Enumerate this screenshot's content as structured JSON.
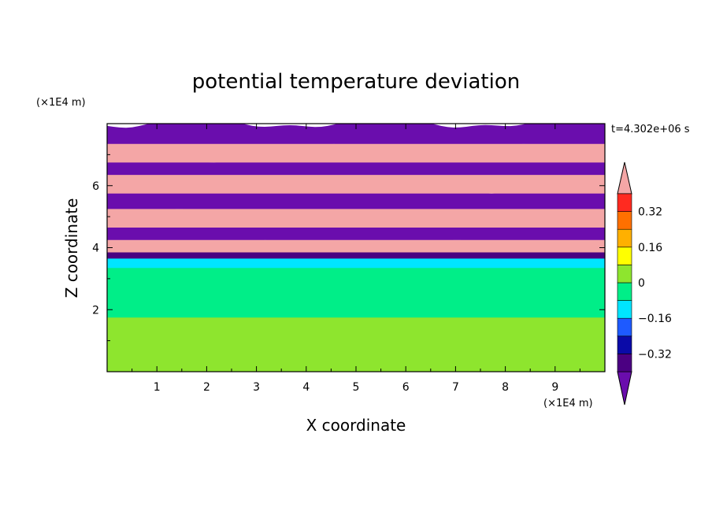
{
  "chart_data": {
    "type": "heatmap",
    "title": "potential temperature deviation",
    "xlabel": "X coordinate",
    "ylabel": "Z coordinate",
    "x_unit": "(×1E4 m)",
    "y_unit": "(×1E4 m)",
    "time_label": "t=4.302e+06 s",
    "xlim": [
      0,
      10
    ],
    "ylim": [
      0,
      8
    ],
    "x_ticks": [
      "1",
      "2",
      "3",
      "4",
      "5",
      "6",
      "7",
      "8",
      "9"
    ],
    "y_ticks": [
      "2",
      "4",
      "6"
    ],
    "colorbar": {
      "levels": [
        -0.48,
        -0.4,
        -0.32,
        -0.24,
        -0.16,
        -0.08,
        0,
        0.08,
        0.16,
        0.24,
        0.32,
        0.4,
        0.48
      ],
      "tick_labels": [
        "0.32",
        "0.16",
        "0",
        "−0.16",
        "−0.32"
      ],
      "tick_values": [
        0.32,
        0.16,
        0,
        -0.16,
        -0.32
      ],
      "colors": [
        "#6a0dad",
        "#4b0082",
        "#0a0aa8",
        "#1e5aff",
        "#00e5ff",
        "#00ee88",
        "#8ee52e",
        "#ffff00",
        "#ffb000",
        "#ff7000",
        "#ff2a20",
        "#f4a6a6"
      ],
      "extend": "both"
    },
    "bands": [
      {
        "z0": 0.0,
        "z1": 1.9,
        "color": "#8ee52e"
      },
      {
        "z0": 1.9,
        "z1": 2.2,
        "color": "#00ee88"
      },
      {
        "z0": 2.2,
        "z1": 3.5,
        "color": "#00ee88"
      },
      {
        "z0": 3.5,
        "z1": 3.8,
        "color": "#00e5ff"
      },
      {
        "z0": 3.8,
        "z1": 4.0,
        "color": "#4b0082"
      },
      {
        "z0": 4.0,
        "z1": 4.4,
        "color": "#f4a6a6"
      },
      {
        "z0": 4.4,
        "z1": 4.8,
        "color": "#6a0dad"
      },
      {
        "z0": 4.8,
        "z1": 5.4,
        "color": "#f4a6a6"
      },
      {
        "z0": 5.4,
        "z1": 5.9,
        "color": "#6a0dad"
      },
      {
        "z0": 5.9,
        "z1": 6.5,
        "color": "#f4a6a6"
      },
      {
        "z0": 6.5,
        "z1": 6.9,
        "color": "#6a0dad"
      },
      {
        "z0": 6.9,
        "z1": 7.5,
        "color": "#f4a6a6"
      },
      {
        "z0": 7.5,
        "z1": 8.0,
        "color": "#6a0dad"
      }
    ]
  }
}
